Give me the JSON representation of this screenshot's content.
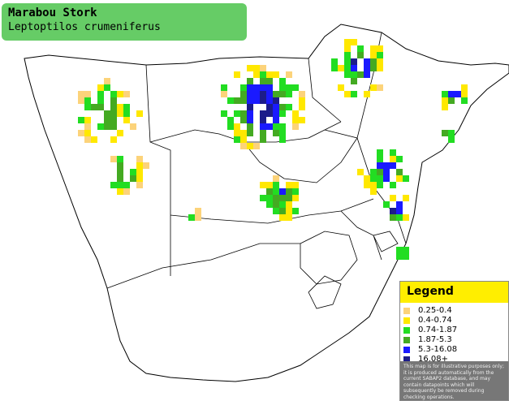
{
  "header": {
    "title": "Marabou Stork",
    "subtitle": "Leptoptilos crumeniferus"
  },
  "legend": {
    "title": "Legend",
    "items": [
      {
        "label": "0.25-0.4",
        "color": "#fcd37a"
      },
      {
        "label": "0.4-0.74",
        "color": "#ffe800"
      },
      {
        "label": "0.74-1.87",
        "color": "#22dd22"
      },
      {
        "label": "1.87-5.3",
        "color": "#44aa22"
      },
      {
        "label": "5.3-16.08",
        "color": "#1a1aff"
      },
      {
        "label": "16.08+",
        "color": "#1c1c8a"
      }
    ],
    "note": "This map is for illustrative purposes only; it is produced automatically from the current SABAP2 database, and may contain datapoints which will subsequently be removed during checking operations."
  }
}
